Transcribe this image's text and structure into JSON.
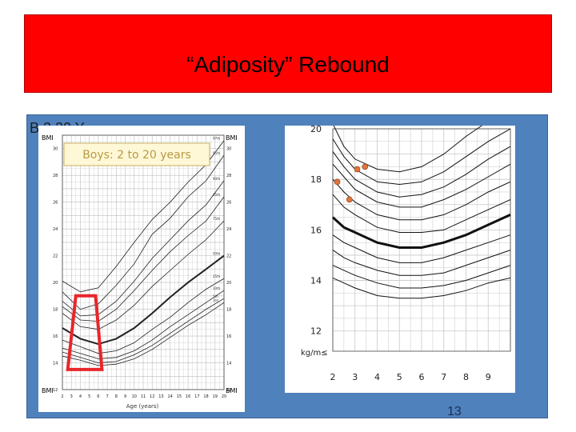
{
  "slide": {
    "title": "“Adiposity” Rebound",
    "bullet_text": "B    2   20 Y",
    "page_number": "13",
    "colors": {
      "title_bg": "#ff0000",
      "content_bg": "#4f81bd",
      "highlight": "#e8262b",
      "point": "#e0743a"
    }
  },
  "left_chart": {
    "label_bmi": "BMI",
    "title": "Boys: 2 to 20 years",
    "xlabel": "Age (years)",
    "x_ticks": [
      "2",
      "3",
      "4",
      "5",
      "6",
      "7",
      "8",
      "9",
      "10",
      "11",
      "12",
      "13",
      "14",
      "15",
      "16",
      "17",
      "18",
      "19",
      "20"
    ],
    "y_ticks_left": [
      "12",
      "14",
      "16",
      "18",
      "20",
      "22",
      "24",
      "26",
      "28",
      "30"
    ],
    "y_ticks_right": [
      "12",
      "14",
      "16",
      "18",
      "20",
      "22",
      "24",
      "26",
      "28",
      "30"
    ],
    "percentile_labels": [
      "97th",
      "95th",
      "90th",
      "85th",
      "75th",
      "50th",
      "25th",
      "10th",
      "5th",
      "3rd"
    ]
  },
  "chart_data": [
    {
      "type": "line",
      "title": "Boys: 2 to 20 years",
      "xlabel": "Age (years)",
      "ylabel": "BMI",
      "xlim": [
        2,
        20
      ],
      "ylim": [
        12,
        31
      ],
      "x": [
        2,
        4,
        6,
        8,
        10,
        12,
        14,
        16,
        18,
        20
      ],
      "series": [
        {
          "name": "97th",
          "values": [
            20.1,
            19.3,
            19.6,
            21.2,
            23.0,
            24.7,
            26.0,
            27.5,
            28.8,
            30.6
          ]
        },
        {
          "name": "95th",
          "values": [
            19.3,
            18.0,
            18.4,
            19.8,
            21.4,
            23.6,
            24.8,
            26.4,
            27.6,
            29.5
          ]
        },
        {
          "name": "90th",
          "values": [
            18.6,
            17.5,
            17.6,
            18.6,
            20.1,
            21.8,
            23.2,
            24.6,
            25.8,
            27.6
          ]
        },
        {
          "name": "85th",
          "values": [
            18.2,
            17.2,
            17.1,
            18.0,
            19.4,
            20.9,
            22.3,
            23.5,
            24.6,
            26.4
          ]
        },
        {
          "name": "75th",
          "values": [
            17.7,
            16.7,
            16.5,
            17.2,
            18.3,
            19.7,
            20.9,
            22.1,
            23.2,
            24.6
          ]
        },
        {
          "name": "50th",
          "values": [
            16.6,
            15.8,
            15.4,
            15.8,
            16.6,
            17.7,
            18.9,
            20.0,
            21.0,
            22.0
          ]
        },
        {
          "name": "25th",
          "values": [
            15.7,
            15.2,
            14.7,
            14.9,
            15.5,
            16.5,
            17.4,
            18.5,
            19.5,
            20.3
          ]
        },
        {
          "name": "10th",
          "values": [
            15.1,
            14.7,
            14.3,
            14.4,
            14.9,
            15.7,
            16.7,
            17.6,
            18.5,
            19.4
          ]
        },
        {
          "name": "5th",
          "values": [
            14.8,
            14.4,
            14.0,
            14.1,
            14.6,
            15.3,
            16.2,
            17.1,
            18.0,
            18.8
          ]
        },
        {
          "name": "3rd",
          "values": [
            14.5,
            14.2,
            13.8,
            13.9,
            14.3,
            15.0,
            15.9,
            16.8,
            17.6,
            18.5
          ]
        }
      ],
      "highlight_region": {
        "age_range": [
          3,
          6
        ],
        "bmi_range": [
          13.5,
          19.0
        ]
      }
    },
    {
      "type": "line",
      "xlabel": "",
      "ylabel": "kg/m≤",
      "x_ticks": [
        "2",
        "3",
        "4",
        "5",
        "6",
        "7",
        "8",
        "9"
      ],
      "y_ticks": [
        "12",
        "14",
        "16",
        "18",
        "20"
      ],
      "xlim": [
        2,
        10
      ],
      "ylim": [
        11.2,
        20
      ],
      "x": [
        2,
        2.5,
        3,
        4,
        5,
        6,
        7,
        8,
        9,
        10
      ],
      "series": [
        {
          "values": [
            20.2,
            19.3,
            18.8,
            18.4,
            18.3,
            18.5,
            19.0,
            19.7,
            20.3,
            20.8
          ]
        },
        {
          "values": [
            19.6,
            18.9,
            18.4,
            17.9,
            17.8,
            17.9,
            18.3,
            18.9,
            19.5,
            20.0
          ]
        },
        {
          "values": [
            19.1,
            18.5,
            18.0,
            17.5,
            17.3,
            17.4,
            17.7,
            18.2,
            18.8,
            19.3
          ]
        },
        {
          "values": [
            18.6,
            18.1,
            17.6,
            17.1,
            16.9,
            16.9,
            17.2,
            17.6,
            18.1,
            18.6
          ]
        },
        {
          "values": [
            18.0,
            17.5,
            17.1,
            16.6,
            16.4,
            16.4,
            16.6,
            17.0,
            17.5,
            17.9
          ]
        },
        {
          "values": [
            17.4,
            16.9,
            16.6,
            16.1,
            15.9,
            15.9,
            16.0,
            16.4,
            16.8,
            17.2
          ]
        },
        {
          "name": "50th",
          "values": [
            16.5,
            16.1,
            15.9,
            15.5,
            15.3,
            15.3,
            15.5,
            15.8,
            16.2,
            16.6
          ]
        },
        {
          "values": [
            15.8,
            15.5,
            15.3,
            14.9,
            14.7,
            14.7,
            14.9,
            15.2,
            15.5,
            15.8
          ]
        },
        {
          "values": [
            15.2,
            14.9,
            14.7,
            14.4,
            14.2,
            14.2,
            14.3,
            14.6,
            14.9,
            15.2
          ]
        },
        {
          "values": [
            14.6,
            14.4,
            14.2,
            13.9,
            13.7,
            13.7,
            13.8,
            14.0,
            14.3,
            14.6
          ]
        },
        {
          "values": [
            14.1,
            13.9,
            13.7,
            13.4,
            13.3,
            13.3,
            13.4,
            13.6,
            13.9,
            14.1
          ]
        }
      ],
      "points": [
        {
          "x": 2.2,
          "y": 17.9
        },
        {
          "x": 2.75,
          "y": 17.2
        },
        {
          "x": 3.1,
          "y": 18.4
        },
        {
          "x": 3.45,
          "y": 18.5
        }
      ]
    }
  ]
}
